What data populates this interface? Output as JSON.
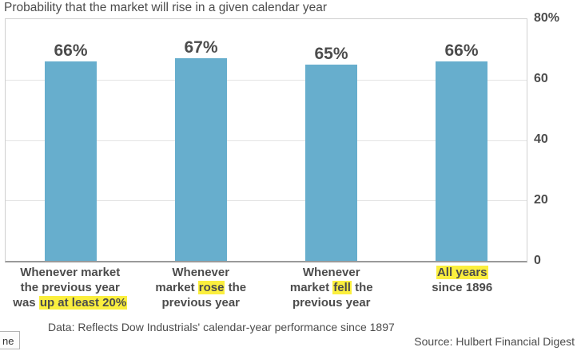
{
  "title": "Probability that the market will rise in a given calendar year",
  "colors": {
    "bar": "#67aecd",
    "highlight": "#fbef3e",
    "text": "#4c4c4c",
    "gridline": "#e3e3e3",
    "axis_line": "#9a9a9a"
  },
  "chart_data": {
    "type": "bar",
    "title": "Probability that the market will rise in a given calendar year",
    "categories": [
      "Whenever market the previous year was up at least 20%",
      "Whenever market rose the previous year",
      "Whenever market fell the previous year",
      "All years since 1896"
    ],
    "category_label_lines": [
      [
        [
          {
            "text": "Whenever market",
            "highlight": false
          }
        ],
        [
          {
            "text": "the previous year",
            "highlight": false
          }
        ],
        [
          {
            "text": "was ",
            "highlight": false
          },
          {
            "text": "up at least 20%",
            "highlight": true
          }
        ]
      ],
      [
        [
          {
            "text": "Whenever",
            "highlight": false
          }
        ],
        [
          {
            "text": "market ",
            "highlight": false
          },
          {
            "text": "rose",
            "highlight": true
          },
          {
            "text": " the",
            "highlight": false
          }
        ],
        [
          {
            "text": "previous year",
            "highlight": false
          }
        ]
      ],
      [
        [
          {
            "text": "Whenever",
            "highlight": false
          }
        ],
        [
          {
            "text": "market ",
            "highlight": false
          },
          {
            "text": "fell",
            "highlight": true
          },
          {
            "text": " the",
            "highlight": false
          }
        ],
        [
          {
            "text": "previous year",
            "highlight": false
          }
        ]
      ],
      [
        [
          {
            "text": "All years",
            "highlight": true
          }
        ],
        [
          {
            "text": "since 1896",
            "highlight": false
          }
        ]
      ]
    ],
    "values": [
      66,
      67,
      65,
      66
    ],
    "value_labels": [
      "66%",
      "67%",
      "65%",
      "66%"
    ],
    "xlabel": "",
    "ylabel": "",
    "ylim": [
      0,
      80
    ],
    "y_ticks": [
      {
        "value": 80,
        "label": "80%"
      },
      {
        "value": 60,
        "label": "60"
      },
      {
        "value": 40,
        "label": "40"
      },
      {
        "value": 20,
        "label": "20"
      },
      {
        "value": 0,
        "label": "0"
      }
    ],
    "grid": true,
    "legend": false
  },
  "footer": {
    "data_note": "Data: Reflects Dow Industrials' calendar-year performance since 1897",
    "source": "Source: Hulbert Financial Digest"
  },
  "link_preview_fragment": "ne"
}
